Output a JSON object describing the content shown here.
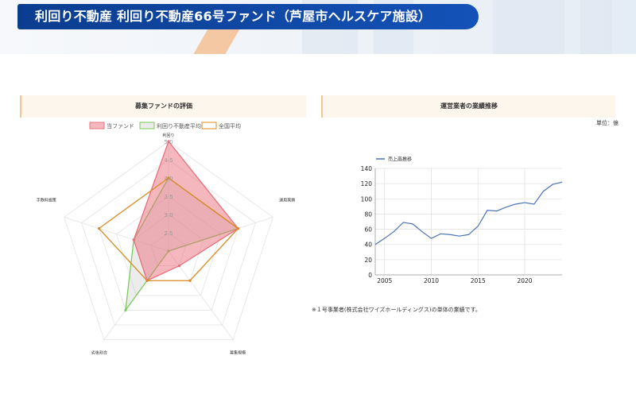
{
  "banner": {
    "title": "利回り不動産 利回り不動産66号ファンド（芦屋市ヘルスケア施設）"
  },
  "left_panel": {
    "heading": "募集ファンドの評価"
  },
  "right_panel": {
    "heading": "運営業者の業績推移",
    "unit": "単位：億",
    "footnote": "※１号事業者(株式会社ワイズホールディングス)の単体の業績です。"
  },
  "colors": {
    "fund": "#e8707c",
    "fund_fill": "rgba(232,112,124,0.5)",
    "avg": "#7cc95a",
    "avg_fill": "rgba(200,200,200,0.35)",
    "national": "#d98a1f",
    "line": "#4a72b8"
  },
  "chart_data": [
    {
      "type": "radar",
      "axes": [
        "利回り",
        "運用実績",
        "募集規模",
        "劣後割合",
        "手数料施策"
      ],
      "ticks": [
        "2.5",
        "3.0",
        "3.5",
        "4.0",
        "4.5",
        "5.0"
      ],
      "range": [
        2.0,
        5.0
      ],
      "legend_position": "top",
      "series": [
        {
          "name": "当ファンド",
          "values": [
            5.0,
            4.0,
            2.5,
            3.0,
            3.0
          ]
        },
        {
          "name": "利回り不動産平均",
          "values": [
            4.0,
            4.0,
            2.0,
            4.0,
            3.0
          ]
        },
        {
          "name": "全国平均",
          "values": [
            4.0,
            4.0,
            3.0,
            3.0,
            4.0
          ]
        }
      ]
    },
    {
      "type": "line",
      "legend": "売上高推移",
      "x": [
        2004,
        2005,
        2006,
        2007,
        2008,
        2009,
        2010,
        2011,
        2012,
        2013,
        2014,
        2015,
        2016,
        2017,
        2018,
        2019,
        2020,
        2021,
        2022,
        2023,
        2024
      ],
      "y": [
        40,
        48,
        57,
        69,
        67,
        57,
        48,
        54,
        53,
        51,
        53,
        64,
        85,
        84,
        89,
        93,
        95,
        93,
        110,
        119,
        122
      ],
      "xlim": [
        2004,
        2024
      ],
      "ylim": [
        0,
        140
      ],
      "xticks": [
        2005,
        2010,
        2015,
        2020
      ],
      "yticks": [
        0,
        20,
        40,
        60,
        80,
        100,
        120,
        140
      ],
      "grid": true
    }
  ]
}
